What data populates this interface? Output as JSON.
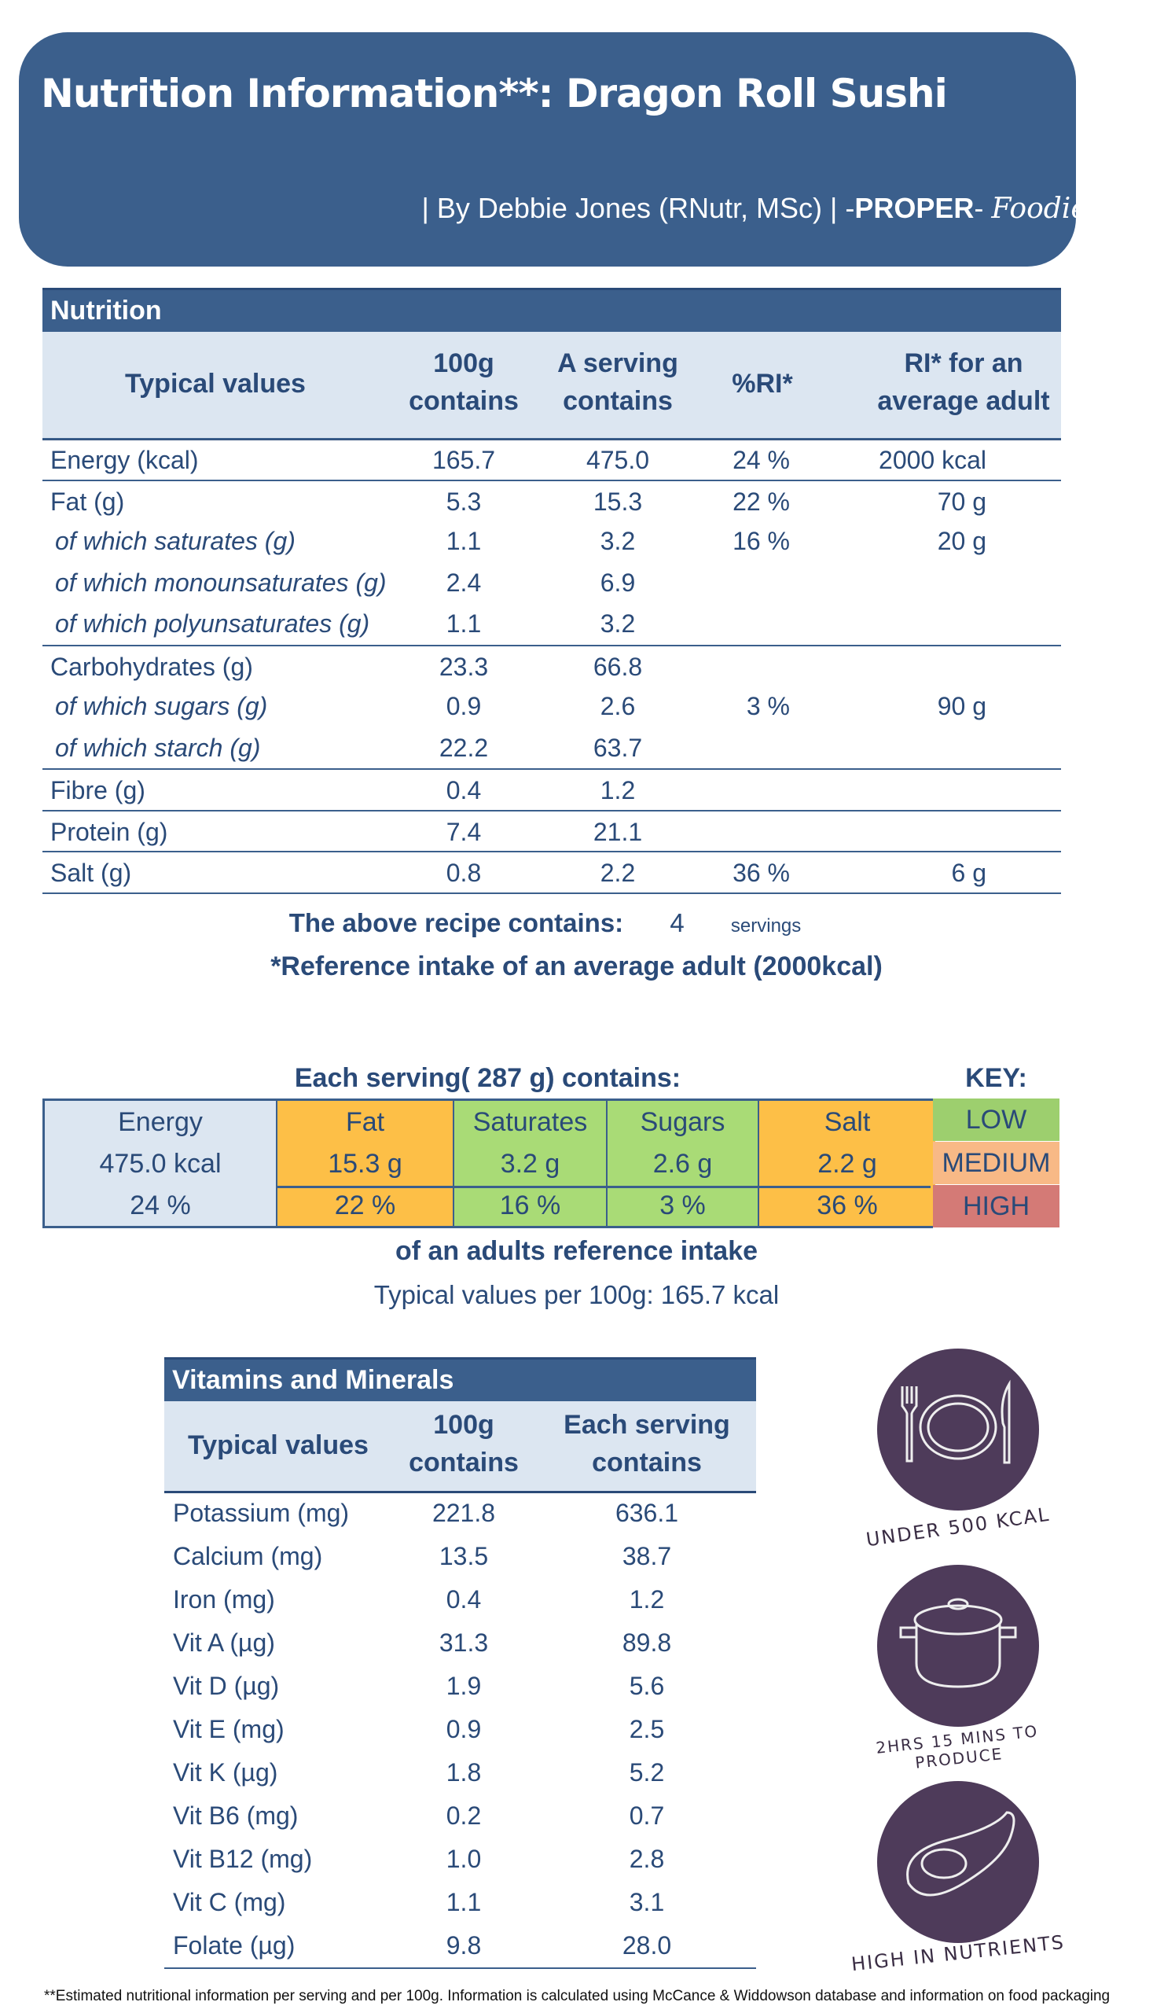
{
  "header": {
    "title": "Nutrition Information**: Dragon Roll Sushi",
    "byline_pre": "| By Debbie Jones (RNutr, MSc) | -",
    "brand_bold": "PROPER",
    "brand_dash": "- ",
    "brand_script": "Foodie",
    "byline_post": " |"
  },
  "nutrition": {
    "section_title": "Nutrition",
    "headers": {
      "label": "Typical values",
      "per100_1": "100g",
      "per100_2": "contains",
      "serving_1": "A serving",
      "serving_2": "contains",
      "ri_pct": "%RI*",
      "ri_1": "RI* for an",
      "ri_2": "average adult"
    },
    "rows": [
      {
        "label": "Energy (kcal)",
        "per100": "165.7",
        "serving": "475.0",
        "pct": "24  %",
        "ri": "2000  kcal",
        "sub": false
      },
      {
        "label": "Fat (g)",
        "per100": "5.3",
        "serving": "15.3",
        "pct": "22  %",
        "ri": "70  g",
        "sub": false
      },
      {
        "label": "of which saturates (g)",
        "per100": "1.1",
        "serving": "3.2",
        "pct": "16  %",
        "ri": "20  g",
        "sub": true
      },
      {
        "label": "of which monounsaturates (g)",
        "per100": "2.4",
        "serving": "6.9",
        "pct": "",
        "ri": "",
        "sub": true
      },
      {
        "label": "of which polyunsaturates (g)",
        "per100": "1.1",
        "serving": "3.2",
        "pct": "",
        "ri": "",
        "sub": true
      },
      {
        "label": "Carbohydrates (g)",
        "per100": "23.3",
        "serving": "66.8",
        "pct": "",
        "ri": "",
        "sub": false
      },
      {
        "label": "of which sugars (g)",
        "per100": "0.9",
        "serving": "2.6",
        "pct": "3  %",
        "ri": "90  g",
        "sub": true
      },
      {
        "label": "of which starch (g)",
        "per100": "22.2",
        "serving": "63.7",
        "pct": "",
        "ri": "",
        "sub": true
      },
      {
        "label": "Fibre (g)",
        "per100": "0.4",
        "serving": "1.2",
        "pct": "",
        "ri": "",
        "sub": false
      },
      {
        "label": "Protein (g)",
        "per100": "7.4",
        "serving": "21.1",
        "pct": "",
        "ri": "",
        "sub": false
      },
      {
        "label": "Salt (g)",
        "per100": "0.8",
        "serving": "2.2",
        "pct": "36  %",
        "ri": "6  g",
        "sub": false
      }
    ],
    "servings_label": "The above recipe contains:",
    "servings_value": "4",
    "servings_unit": "servings",
    "reference_note": "*Reference intake of an average adult (2000kcal)"
  },
  "traffic": {
    "title": "Each serving(   287  g) contains:",
    "key_title": "KEY:",
    "energy": {
      "label": "Energy",
      "value": "475.0  kcal",
      "pct": "24  %"
    },
    "items": [
      {
        "label": "Fat",
        "value": "15.3  g",
        "pct": "22  %",
        "level": "medium"
      },
      {
        "label": "Saturates",
        "value": "3.2  g",
        "pct": "16  %",
        "level": "low"
      },
      {
        "label": "Sugars",
        "value": "2.6  g",
        "pct": "3  %",
        "level": "low"
      },
      {
        "label": "Salt",
        "value": "2.2  g",
        "pct": "36  %",
        "level": "medium"
      }
    ],
    "key": [
      {
        "label": "LOW",
        "color": "#9dcf6e"
      },
      {
        "label": "MEDIUM",
        "color": "#f8b986"
      },
      {
        "label": "HIGH",
        "color": "#d47a76"
      }
    ],
    "colors": {
      "low": "#a9db76",
      "medium": "#fdbf47",
      "energy": "#dce6f1"
    },
    "footnote": "of an adults reference intake",
    "per100": "Typical values per 100g:   165.7  kcal"
  },
  "vitamins": {
    "section_title": "Vitamins and Minerals",
    "headers": {
      "label": "Typical values",
      "per100_1": "100g",
      "per100_2": "contains",
      "serving_1": "Each serving",
      "serving_2": "contains"
    },
    "rows": [
      {
        "label": "Potassium (mg)",
        "per100": "221.8",
        "serving": "636.1"
      },
      {
        "label": "Calcium (mg)",
        "per100": "13.5",
        "serving": "38.7"
      },
      {
        "label": "Iron (mg)",
        "per100": "0.4",
        "serving": "1.2"
      },
      {
        "label": "Vit A (µg)",
        "per100": "31.3",
        "serving": "89.8"
      },
      {
        "label": "Vit D (µg)",
        "per100": "1.9",
        "serving": "5.6"
      },
      {
        "label": "Vit E (mg)",
        "per100": "0.9",
        "serving": "2.5"
      },
      {
        "label": "Vit K (µg)",
        "per100": "1.8",
        "serving": "5.2"
      },
      {
        "label": "Vit B6 (mg)",
        "per100": "0.2",
        "serving": "0.7"
      },
      {
        "label": "Vit B12 (mg)",
        "per100": "1.0",
        "serving": "2.8"
      },
      {
        "label": "Vit C (mg)",
        "per100": "1.1",
        "serving": "3.1"
      },
      {
        "label": "Folate (µg)",
        "per100": "9.8",
        "serving": "28.0"
      }
    ]
  },
  "badges": [
    {
      "label": "UNDER 500 KCAL",
      "icon": "plate-cutlery-icon"
    },
    {
      "label": "2HRS 15 MINS TO PRODUCE",
      "icon": "cooking-pot-icon"
    },
    {
      "label": "HIGH IN NUTRIENTS",
      "icon": "avocado-icon"
    }
  ],
  "badge_color": "#4e3b5a",
  "footer": "**Estimated nutritional information per serving and per 100g. Information is calculated using McCance & Widdowson database and information on food packaging"
}
